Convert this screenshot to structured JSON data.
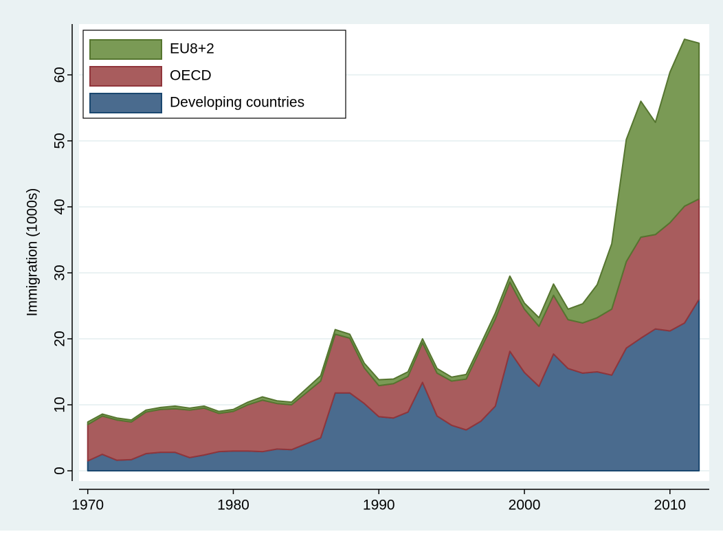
{
  "chart_data": {
    "type": "stacked_area",
    "y_label": "Immigration (1000s)",
    "x": [
      1970,
      1971,
      1972,
      1973,
      1974,
      1975,
      1976,
      1977,
      1978,
      1979,
      1980,
      1981,
      1982,
      1983,
      1984,
      1985,
      1986,
      1987,
      1988,
      1989,
      1990,
      1991,
      1992,
      1993,
      1994,
      1995,
      1996,
      1997,
      1998,
      1999,
      2000,
      2001,
      2002,
      2003,
      2004,
      2005,
      2006,
      2007,
      2008,
      2009,
      2010,
      2011,
      2012
    ],
    "series": [
      {
        "name": "Developing countries",
        "color": "#4a6b8e",
        "edge": "#1a476f",
        "values": [
          1.5,
          2.5,
          1.6,
          1.7,
          2.6,
          2.8,
          2.8,
          2.0,
          2.4,
          2.9,
          3.0,
          3.0,
          2.9,
          3.3,
          3.2,
          4.1,
          5.0,
          11.8,
          11.8,
          10.2,
          8.2,
          8.0,
          8.9,
          13.4,
          8.3,
          6.9,
          6.2,
          7.5,
          9.8,
          18.1,
          14.9,
          12.8,
          17.7,
          15.5,
          14.8,
          15.0,
          14.5,
          18.6,
          20.1,
          21.5,
          21.2,
          22.4,
          26.0
        ]
      },
      {
        "name": "OECD",
        "color": "#a85c5d",
        "edge": "#90353b",
        "values": [
          5.5,
          5.8,
          6.1,
          5.7,
          6.3,
          6.5,
          6.6,
          7.2,
          7.1,
          5.8,
          6.0,
          7.0,
          7.8,
          6.9,
          6.8,
          7.7,
          8.6,
          8.9,
          8.3,
          5.4,
          4.7,
          5.2,
          5.4,
          6.0,
          6.5,
          6.7,
          7.7,
          11.0,
          13.2,
          10.5,
          9.6,
          9.1,
          8.9,
          7.4,
          7.6,
          8.2,
          10.0,
          13.1,
          15.3,
          14.3,
          16.4,
          17.7,
          15.2
        ]
      },
      {
        "name": "EU8+2",
        "color": "#7a9a55",
        "edge": "#55752f",
        "values": [
          0.4,
          0.3,
          0.3,
          0.3,
          0.3,
          0.3,
          0.4,
          0.3,
          0.3,
          0.3,
          0.3,
          0.4,
          0.5,
          0.4,
          0.4,
          0.6,
          0.8,
          0.7,
          0.6,
          0.7,
          0.9,
          0.7,
          0.7,
          0.6,
          0.7,
          0.6,
          0.7,
          0.7,
          0.9,
          0.9,
          0.9,
          1.3,
          1.7,
          1.6,
          2.9,
          5.0,
          9.9,
          18.5,
          20.6,
          17.0,
          22.8,
          25.3,
          23.6
        ]
      }
    ],
    "xlim": [
      1969.4,
      2012.7
    ],
    "xticks": [
      1970,
      1980,
      1990,
      2000,
      2010
    ],
    "ylim": [
      -1.56,
      67.7
    ],
    "yticks": [
      0,
      10,
      20,
      30,
      40,
      50,
      60
    ],
    "grid": true,
    "legend": "top-left"
  }
}
